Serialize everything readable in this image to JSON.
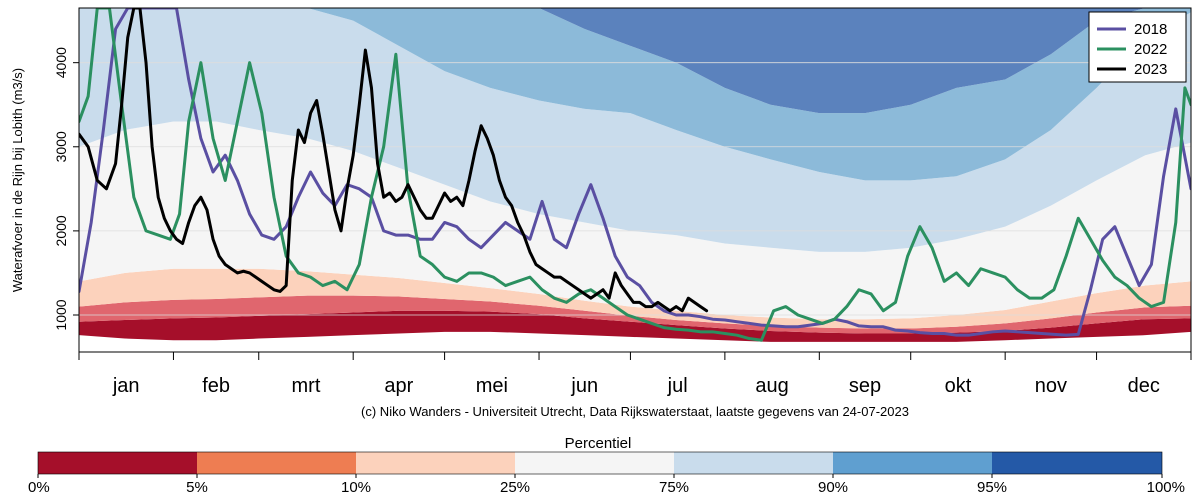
{
  "chart_data": {
    "type": "line",
    "title": "",
    "ylabel": "Waterafvoer in de Rijn bij Lobith (m3/s)",
    "xlabel": "",
    "ylim": [
      560,
      4650
    ],
    "xlim": [
      0,
      365
    ],
    "yticks": [
      1000,
      2000,
      3000,
      4000
    ],
    "months": [
      "jan",
      "feb",
      "mrt",
      "apr",
      "mei",
      "jun",
      "jul",
      "aug",
      "sep",
      "okt",
      "nov",
      "dec"
    ],
    "month_starts": [
      0,
      31,
      59,
      90,
      120,
      151,
      181,
      212,
      243,
      273,
      304,
      334,
      365
    ],
    "grid": "horizontal",
    "legend_position": "top-right",
    "credit": "(c) Niko Wanders - Universiteit Utrecht, Data Rijkswaterstaat, laatste gegevens van 24-07-2023",
    "colorbar": {
      "title": "Percentiel",
      "labels": [
        "0%",
        "5%",
        "10%",
        "25%",
        "75%",
        "90%",
        "95%",
        "100%"
      ],
      "colors": [
        "#a50f2a",
        "#ee7d52",
        "#fcd2bc",
        "#f5f5f5",
        "#c9dcec",
        "#5f9fd0",
        "#2459a7"
      ]
    },
    "percentile_bands": {
      "doy": [
        0,
        15,
        31,
        45,
        59,
        75,
        90,
        105,
        120,
        135,
        151,
        166,
        181,
        196,
        212,
        227,
        243,
        258,
        273,
        288,
        304,
        319,
        334,
        350,
        365
      ],
      "p0": [
        760,
        720,
        700,
        700,
        720,
        740,
        760,
        780,
        800,
        800,
        780,
        760,
        740,
        720,
        700,
        680,
        680,
        680,
        680,
        680,
        700,
        720,
        740,
        760,
        800
      ],
      "p5": [
        920,
        940,
        960,
        970,
        990,
        1010,
        1030,
        1050,
        1050,
        1040,
        1010,
        960,
        920,
        880,
        840,
        810,
        790,
        780,
        780,
        790,
        810,
        850,
        900,
        950,
        960
      ],
      "p10": [
        1100,
        1150,
        1180,
        1190,
        1210,
        1230,
        1230,
        1220,
        1190,
        1160,
        1110,
        1050,
        990,
        940,
        900,
        870,
        850,
        840,
        840,
        860,
        900,
        960,
        1030,
        1090,
        1110
      ],
      "p25": [
        1400,
        1500,
        1550,
        1550,
        1550,
        1520,
        1480,
        1440,
        1380,
        1320,
        1250,
        1170,
        1100,
        1050,
        1000,
        970,
        950,
        950,
        960,
        1000,
        1060,
        1160,
        1260,
        1350,
        1400
      ],
      "p75": [
        3000,
        3200,
        3300,
        3300,
        3200,
        3100,
        2950,
        2750,
        2550,
        2350,
        2200,
        2100,
        2000,
        1950,
        1850,
        1800,
        1750,
        1750,
        1800,
        1900,
        2050,
        2300,
        2600,
        2900,
        3050
      ],
      "p90": [
        4650,
        4650,
        4650,
        4650,
        4650,
        4650,
        4500,
        4200,
        3900,
        3700,
        3550,
        3450,
        3400,
        3200,
        3000,
        2850,
        2700,
        2600,
        2600,
        2650,
        2850,
        3200,
        3700,
        4300,
        4600
      ],
      "p95": [
        4650,
        4650,
        4650,
        4650,
        4650,
        4650,
        4650,
        4650,
        4650,
        4650,
        4650,
        4400,
        4200,
        4000,
        3700,
        3500,
        3400,
        3400,
        3500,
        3700,
        3800,
        4100,
        4500,
        4650,
        4650
      ]
    },
    "series": [
      {
        "name": "2018",
        "color": "#5a4fa2",
        "x": [
          0,
          4,
          8,
          12,
          16,
          20,
          24,
          28,
          32,
          36,
          40,
          44,
          48,
          52,
          56,
          60,
          64,
          68,
          72,
          76,
          80,
          84,
          88,
          92,
          96,
          100,
          104,
          108,
          112,
          116,
          120,
          124,
          128,
          132,
          136,
          140,
          144,
          148,
          152,
          156,
          160,
          164,
          168,
          172,
          176,
          180,
          184,
          188,
          192,
          196,
          200,
          204,
          208,
          212,
          216,
          220,
          224,
          228,
          232,
          236,
          240,
          244,
          248,
          252,
          256,
          260,
          264,
          268,
          272,
          276,
          280,
          284,
          288,
          292,
          296,
          300,
          304,
          308,
          312,
          316,
          320,
          324,
          328,
          332,
          336,
          340,
          344,
          348,
          352,
          356,
          360,
          365
        ],
        "y": [
          1280,
          2100,
          3200,
          4400,
          4650,
          4650,
          4650,
          4650,
          4650,
          3800,
          3100,
          2700,
          2900,
          2600,
          2200,
          1950,
          1900,
          2050,
          2400,
          2700,
          2450,
          2300,
          2550,
          2500,
          2400,
          2000,
          1950,
          1950,
          1900,
          1900,
          2100,
          2050,
          1900,
          1800,
          1950,
          2100,
          2000,
          1900,
          2350,
          1900,
          1800,
          2200,
          2550,
          2150,
          1700,
          1450,
          1350,
          1150,
          1050,
          1000,
          1000,
          980,
          950,
          940,
          920,
          900,
          880,
          870,
          860,
          860,
          880,
          900,
          950,
          920,
          870,
          860,
          860,
          820,
          810,
          790,
          780,
          780,
          760,
          760,
          780,
          800,
          810,
          800,
          790,
          780,
          770,
          760,
          770,
          1300,
          1900,
          2050,
          1700,
          1350,
          1600,
          2650,
          3450,
          2500
        ]
      },
      {
        "name": "2022",
        "color": "#2b9060",
        "x": [
          0,
          3,
          6,
          10,
          14,
          18,
          22,
          26,
          30,
          33,
          36,
          40,
          44,
          48,
          52,
          56,
          60,
          64,
          68,
          72,
          76,
          80,
          84,
          88,
          92,
          96,
          100,
          104,
          108,
          112,
          116,
          120,
          124,
          128,
          132,
          136,
          140,
          144,
          148,
          152,
          156,
          160,
          164,
          168,
          172,
          176,
          180,
          184,
          188,
          192,
          196,
          200,
          204,
          208,
          212,
          216,
          220,
          224,
          228,
          232,
          236,
          240,
          244,
          248,
          252,
          256,
          260,
          264,
          268,
          272,
          276,
          280,
          284,
          288,
          292,
          296,
          300,
          304,
          308,
          312,
          316,
          320,
          324,
          328,
          332,
          336,
          340,
          344,
          348,
          352,
          356,
          360,
          363,
          365
        ],
        "y": [
          3300,
          3600,
          4650,
          4650,
          3500,
          2400,
          2000,
          1950,
          1900,
          2200,
          3300,
          4000,
          3100,
          2600,
          3300,
          4000,
          3400,
          2400,
          1700,
          1500,
          1450,
          1350,
          1400,
          1300,
          1600,
          2400,
          3000,
          4100,
          2500,
          1700,
          1600,
          1450,
          1400,
          1500,
          1500,
          1450,
          1350,
          1400,
          1450,
          1300,
          1200,
          1150,
          1250,
          1300,
          1200,
          1100,
          1000,
          950,
          900,
          850,
          830,
          820,
          800,
          800,
          780,
          760,
          720,
          700,
          1050,
          1100,
          1000,
          950,
          900,
          950,
          1100,
          1300,
          1250,
          1050,
          1150,
          1700,
          2050,
          1800,
          1400,
          1500,
          1350,
          1550,
          1500,
          1450,
          1300,
          1200,
          1200,
          1300,
          1700,
          2150,
          1900,
          1650,
          1450,
          1350,
          1200,
          1100,
          1150,
          2100,
          3700,
          3500
        ]
      },
      {
        "name": "2023",
        "color": "#000000",
        "x": [
          0,
          3,
          6,
          9,
          12,
          14,
          16,
          18,
          20,
          22,
          24,
          26,
          28,
          30,
          32,
          34,
          36,
          38,
          40,
          42,
          44,
          46,
          48,
          50,
          52,
          54,
          56,
          58,
          60,
          62,
          64,
          66,
          68,
          70,
          72,
          74,
          76,
          78,
          80,
          82,
          84,
          86,
          88,
          90,
          92,
          94,
          96,
          98,
          100,
          102,
          104,
          106,
          108,
          110,
          112,
          114,
          116,
          118,
          120,
          122,
          124,
          126,
          128,
          130,
          132,
          134,
          136,
          138,
          140,
          142,
          144,
          146,
          148,
          150,
          152,
          154,
          156,
          158,
          160,
          162,
          164,
          166,
          168,
          170,
          172,
          174,
          176,
          178,
          180,
          182,
          184,
          186,
          188,
          190,
          192,
          194,
          196,
          198,
          200,
          202,
          204,
          206
        ],
        "y": [
          3150,
          3000,
          2600,
          2500,
          2800,
          3500,
          4300,
          4650,
          4650,
          4000,
          3000,
          2400,
          2150,
          2000,
          1900,
          1850,
          2100,
          2300,
          2400,
          2250,
          1900,
          1700,
          1600,
          1550,
          1500,
          1520,
          1500,
          1450,
          1400,
          1350,
          1300,
          1280,
          1350,
          2600,
          3200,
          3050,
          3400,
          3550,
          3150,
          2700,
          2250,
          2000,
          2500,
          2900,
          3500,
          4150,
          3700,
          2800,
          2400,
          2450,
          2350,
          2400,
          2550,
          2400,
          2250,
          2150,
          2150,
          2300,
          2450,
          2350,
          2400,
          2300,
          2600,
          2950,
          3250,
          3100,
          2900,
          2600,
          2400,
          2300,
          2100,
          1950,
          1750,
          1600,
          1550,
          1500,
          1450,
          1450,
          1400,
          1350,
          1300,
          1250,
          1200,
          1250,
          1300,
          1200,
          1500,
          1350,
          1250,
          1150,
          1150,
          1100,
          1100,
          1150,
          1100,
          1050,
          1100,
          1050,
          1200,
          1150,
          1100,
          1050
        ]
      }
    ]
  }
}
